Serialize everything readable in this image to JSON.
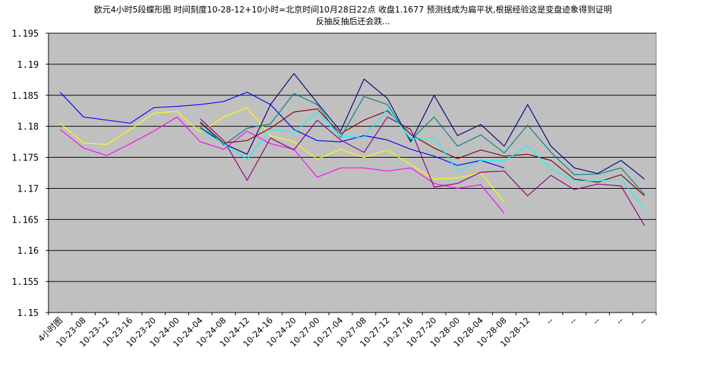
{
  "title_line1": "欧元4小时5段蝶形图 时间刻度10-28-12+10小时=北京时间10月28日22点 收盘1.1677 预测线成为扁平状,根据经验这是变盘迹象得到证明",
  "title_line2": "反抽反抽后还会跌...",
  "chart_data": {
    "type": "line",
    "title": "欧元4小时5段蝶形图 时间刻度10-28-12+10小时=北京时间10月28日22点 收盘1.1677 预测线成为扁平状,根据经验这是变盘迹象得到证明 反抽反抽后还会跌...",
    "xlabel": "",
    "ylabel": "",
    "ylim": [
      1.15,
      1.195
    ],
    "yticks": [
      "1.15",
      "1.155",
      "1.16",
      "1.165",
      "1.17",
      "1.175",
      "1.18",
      "1.185",
      "1.19",
      "1.195"
    ],
    "grid": true,
    "legend": "none",
    "plot_background": "#c0c0c0",
    "categories": [
      "4小时图",
      "10-23-08",
      "10-23-12",
      "10-23-16",
      "10-23-20",
      "10-24-00",
      "10-24-04",
      "10-24-08",
      "10-24-12",
      "10-24-16",
      "10-24-20",
      "10-27-00",
      "10-27-04",
      "10-27-08",
      "10-27-12",
      "10-27-16",
      "10-27-20",
      "10-28-00",
      "10-28-04",
      "10-28-08",
      "10-28-12",
      "--",
      "--",
      "--",
      "--",
      "--"
    ],
    "series": [
      {
        "color": "#0000ff",
        "values": [
          1.1855,
          1.1815,
          1.181,
          1.1805,
          1.183,
          1.1832,
          1.1835,
          1.184,
          1.1855,
          1.1835,
          1.1795,
          1.1777,
          1.1775,
          1.1785,
          1.1778,
          1.1763,
          1.1752,
          1.1737,
          1.1745,
          1.1733,
          null,
          null,
          null,
          null,
          null,
          null
        ]
      },
      {
        "color": "#ffff00",
        "values": [
          1.1805,
          1.1773,
          1.1771,
          1.1795,
          1.1821,
          1.1824,
          1.179,
          1.1815,
          1.183,
          1.1785,
          1.1775,
          1.1747,
          1.1763,
          1.175,
          1.1762,
          1.1738,
          1.1715,
          1.1717,
          1.1725,
          1.1678,
          null,
          null,
          null,
          null,
          null,
          null
        ]
      },
      {
        "color": "#ff00ff",
        "values": [
          1.1795,
          1.1765,
          1.1753,
          1.1772,
          1.1792,
          1.1815,
          1.1775,
          1.1763,
          1.1792,
          1.1772,
          1.1763,
          1.1718,
          1.1733,
          1.1733,
          1.1728,
          1.1733,
          1.1708,
          1.17,
          1.1706,
          1.166,
          null,
          null,
          null,
          null,
          null,
          null
        ]
      },
      {
        "color": "#000080",
        "values": [
          null,
          null,
          null,
          null,
          null,
          null,
          1.1798,
          1.1772,
          1.1755,
          1.1835,
          1.1885,
          1.1838,
          1.1792,
          1.1876,
          1.1845,
          1.1775,
          1.185,
          1.1785,
          1.1803,
          1.1768,
          1.1835,
          1.1768,
          1.1733,
          1.1724,
          1.1745,
          1.1715
        ]
      },
      {
        "color": "#800000",
        "values": [
          null,
          null,
          null,
          null,
          null,
          null,
          1.1807,
          1.1773,
          1.1777,
          1.1797,
          1.1823,
          1.1828,
          1.1788,
          1.181,
          1.1825,
          1.1787,
          1.1765,
          1.1748,
          1.1762,
          1.1752,
          1.1755,
          1.1745,
          1.1715,
          1.171,
          1.1722,
          1.1688
        ]
      },
      {
        "color": "#008080",
        "values": [
          null,
          null,
          null,
          null,
          null,
          null,
          1.1805,
          1.177,
          1.1797,
          1.1804,
          1.1853,
          1.1835,
          1.1782,
          1.1848,
          1.1835,
          1.1778,
          1.1815,
          1.1768,
          1.1786,
          1.1757,
          1.1802,
          1.1758,
          1.1722,
          1.1723,
          1.1733,
          1.169
        ]
      },
      {
        "color": "#800080",
        "values": [
          null,
          null,
          null,
          null,
          null,
          null,
          1.1812,
          1.1777,
          1.1713,
          1.1781,
          1.1762,
          1.181,
          1.1778,
          1.1758,
          1.1815,
          1.1795,
          1.1702,
          1.1708,
          1.1726,
          1.1728,
          1.1688,
          1.1721,
          1.1698,
          1.1707,
          1.1704,
          1.164
        ]
      },
      {
        "color": "#00ffff",
        "values": [
          null,
          null,
          null,
          null,
          null,
          null,
          1.1795,
          1.1772,
          1.1747,
          1.1795,
          1.179,
          1.1822,
          1.1784,
          1.1782,
          1.1828,
          1.178,
          1.1782,
          1.1728,
          1.1745,
          1.1745,
          1.1768,
          1.1732,
          1.1712,
          1.1712,
          1.1715,
          1.1667
        ]
      }
    ]
  }
}
